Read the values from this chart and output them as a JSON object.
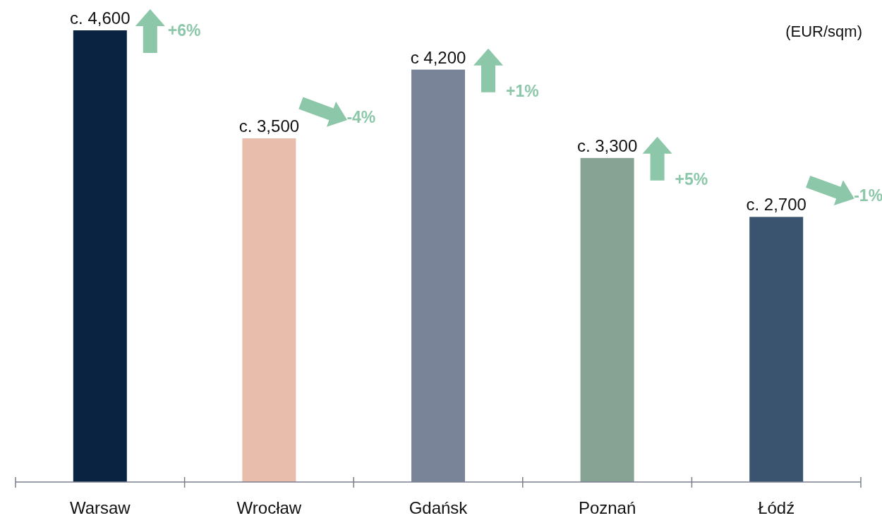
{
  "chart_data": {
    "type": "bar",
    "ylabel": "(EUR/sqm)",
    "categories": [
      "Warsaw",
      "Wrocław",
      "Gdańsk",
      "Poznań",
      "Łódź"
    ],
    "values": [
      4600,
      3500,
      4200,
      3300,
      2700
    ],
    "colors": [
      "#0a2340",
      "#e9bdac",
      "#7a8499",
      "#86a394",
      "#3a5470"
    ],
    "value_labels": [
      "c. 4,600",
      "c. 3,500",
      "c 4,200",
      "c. 3,300",
      "c. 2,700"
    ],
    "annotations": [
      "+6%",
      "-4%",
      "+1%",
      "+5%",
      "-1%"
    ],
    "tick_labels": "x"
  }
}
